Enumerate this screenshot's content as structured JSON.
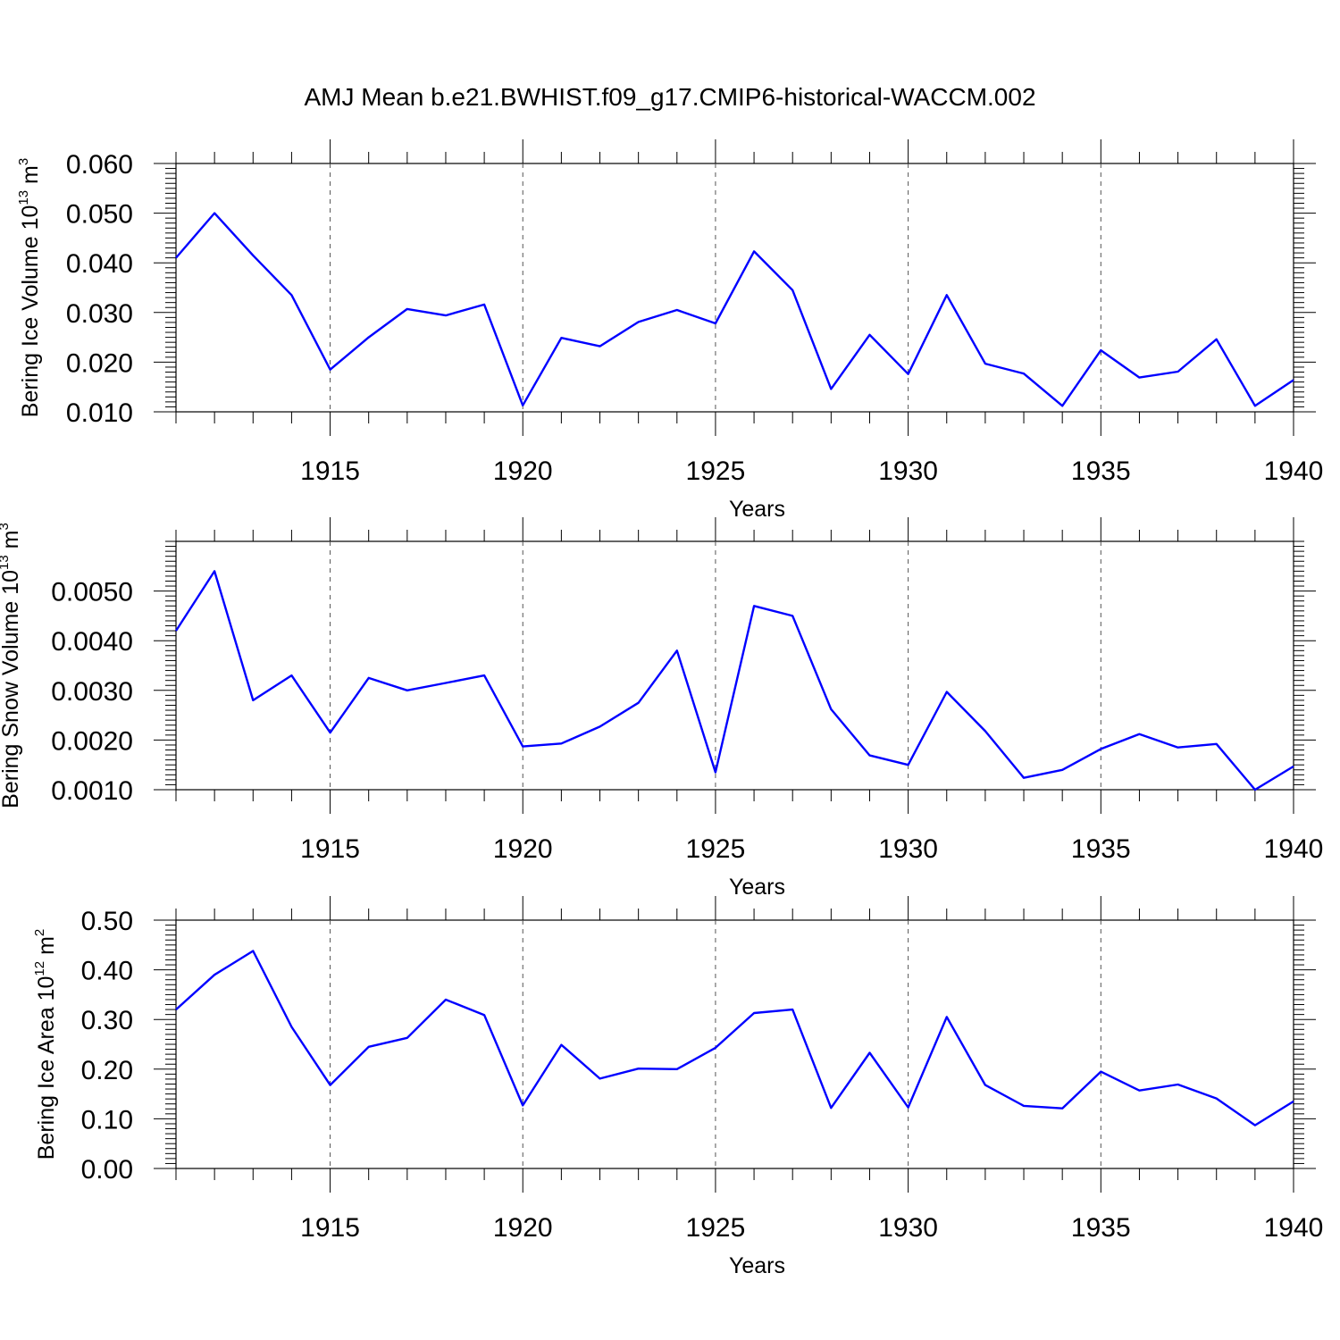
{
  "title": "AMJ Mean b.e21.BWHIST.f09_g17.CMIP6-historical-WACCM.002",
  "colors": {
    "line": "#0000ff",
    "axis": "#000000",
    "grid": "#555555"
  },
  "chart_data": [
    {
      "type": "line",
      "xlabel": "Years",
      "ylabel": {
        "text": "Bering Ice Volume 10",
        "sup": "13",
        "unit": " m",
        "unit_sup": "3"
      },
      "x": [
        1911,
        1912,
        1913,
        1914,
        1915,
        1916,
        1917,
        1918,
        1919,
        1920,
        1921,
        1922,
        1923,
        1924,
        1925,
        1926,
        1927,
        1928,
        1929,
        1930,
        1931,
        1932,
        1933,
        1934,
        1935,
        1936,
        1937,
        1938,
        1939,
        1940
      ],
      "values": [
        0.041,
        0.05,
        0.0415,
        0.0335,
        0.0185,
        0.025,
        0.0307,
        0.0294,
        0.0316,
        0.0113,
        0.0249,
        0.0232,
        0.0281,
        0.0305,
        0.0278,
        0.0423,
        0.0345,
        0.0146,
        0.0255,
        0.0176,
        0.0335,
        0.0197,
        0.0177,
        0.0112,
        0.0224,
        0.0169,
        0.0181,
        0.0246,
        0.0112,
        0.0164
      ],
      "xlim": [
        1911,
        1940
      ],
      "ylim": [
        0.01,
        0.06
      ],
      "yticks": [
        "0.010",
        "0.020",
        "0.030",
        "0.040",
        "0.050",
        "0.060"
      ],
      "xticks": [
        "1915",
        "1920",
        "1925",
        "1930",
        "1935",
        "1940"
      ],
      "grid": "vertical dashed at major x ticks"
    },
    {
      "type": "line",
      "xlabel": "Years",
      "ylabel": {
        "text": "Bering Snow Volume 10",
        "sup": "13",
        "unit": " m",
        "unit_sup": "3"
      },
      "x": [
        1911,
        1912,
        1913,
        1914,
        1915,
        1916,
        1917,
        1918,
        1919,
        1920,
        1921,
        1922,
        1923,
        1924,
        1925,
        1926,
        1927,
        1928,
        1929,
        1930,
        1931,
        1932,
        1933,
        1934,
        1935,
        1936,
        1937,
        1938,
        1939,
        1940
      ],
      "values": [
        0.0042,
        0.0054,
        0.0028,
        0.0033,
        0.00215,
        0.00325,
        0.003,
        0.00315,
        0.0033,
        0.00187,
        0.00193,
        0.00227,
        0.00275,
        0.0038,
        0.00135,
        0.0047,
        0.0045,
        0.00262,
        0.00169,
        0.0015,
        0.00297,
        0.00218,
        0.00124,
        0.0014,
        0.00182,
        0.00212,
        0.00185,
        0.00192,
        0.001,
        0.00147
      ],
      "xlim": [
        1911,
        1940
      ],
      "ylim": [
        0.001,
        0.006
      ],
      "yticks": [
        "0.0010",
        "0.0020",
        "0.0030",
        "0.0040",
        "0.0050"
      ],
      "xticks": [
        "1915",
        "1920",
        "1925",
        "1930",
        "1935",
        "1940"
      ],
      "grid": "vertical dashed at major x ticks"
    },
    {
      "type": "line",
      "xlabel": "Years",
      "ylabel": {
        "text": "Bering Ice Area 10",
        "sup": "12",
        "unit": " m",
        "unit_sup": "2"
      },
      "x": [
        1911,
        1912,
        1913,
        1914,
        1915,
        1916,
        1917,
        1918,
        1919,
        1920,
        1921,
        1922,
        1923,
        1924,
        1925,
        1926,
        1927,
        1928,
        1929,
        1930,
        1931,
        1932,
        1933,
        1934,
        1935,
        1936,
        1937,
        1938,
        1939,
        1940
      ],
      "values": [
        0.32,
        0.39,
        0.438,
        0.285,
        0.168,
        0.245,
        0.263,
        0.34,
        0.309,
        0.127,
        0.249,
        0.181,
        0.201,
        0.2,
        0.243,
        0.313,
        0.32,
        0.122,
        0.233,
        0.123,
        0.305,
        0.168,
        0.126,
        0.121,
        0.195,
        0.157,
        0.169,
        0.141,
        0.087,
        0.135
      ],
      "xlim": [
        1911,
        1940
      ],
      "ylim": [
        0.0,
        0.5
      ],
      "yticks": [
        "0.00",
        "0.10",
        "0.20",
        "0.30",
        "0.40",
        "0.50"
      ],
      "xticks": [
        "1915",
        "1920",
        "1925",
        "1930",
        "1935",
        "1940"
      ],
      "grid": "vertical dashed at major x ticks"
    }
  ]
}
